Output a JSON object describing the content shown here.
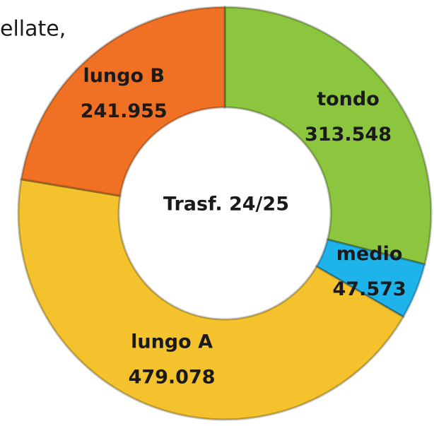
{
  "chart_data": {
    "type": "donut",
    "caption": "ellate,",
    "center_label": "Trasf. 24/25",
    "categories": [
      "tondo",
      "medio",
      "lungo A",
      "lungo B"
    ],
    "values": [
      313548,
      47573,
      479078,
      241955
    ],
    "value_labels": [
      "313.548",
      "47.573",
      "479.078",
      "241.955"
    ],
    "colors": [
      "#8cc63f",
      "#1eb3ea",
      "#f3c22c",
      "#f07024"
    ]
  }
}
